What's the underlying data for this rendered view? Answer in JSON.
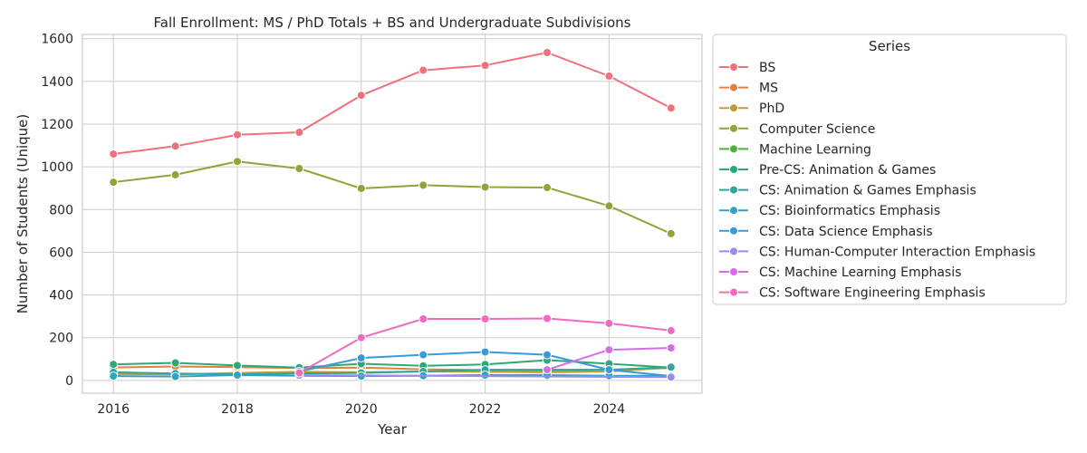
{
  "chart_data": {
    "type": "line",
    "title": "Fall Enrollment: MS / PhD Totals + BS and Undergraduate Subdivisions",
    "xlabel": "Year",
    "ylabel": "Number of Students (Unique)",
    "xlim": [
      2015.5,
      2025.5
    ],
    "ylim": [
      -60,
      1620
    ],
    "xticks": [
      2016,
      2018,
      2020,
      2022,
      2024
    ],
    "yticks": [
      0,
      200,
      400,
      600,
      800,
      1000,
      1200,
      1400,
      1600
    ],
    "grid": true,
    "legend": {
      "title": "Series",
      "placement": "outside-right"
    },
    "x": [
      2016,
      2017,
      2018,
      2019,
      2020,
      2021,
      2022,
      2023,
      2024,
      2025
    ],
    "series": [
      {
        "name": "BS",
        "color": "#f0717c",
        "values": [
          1060,
          1097,
          1150,
          1162,
          1335,
          1452,
          1475,
          1535,
          1425,
          1275
        ]
      },
      {
        "name": "MS",
        "color": "#e1803f",
        "values": [
          60,
          65,
          62,
          58,
          60,
          52,
          48,
          45,
          50,
          58
        ]
      },
      {
        "name": "PhD",
        "color": "#c29b34",
        "values": [
          30,
          28,
          35,
          40,
          38,
          42,
          40,
          38,
          42,
          60
        ]
      },
      {
        "name": "Computer Science",
        "color": "#95a23a",
        "values": [
          928,
          963,
          1025,
          992,
          899,
          914,
          905,
          903,
          817,
          687
        ]
      },
      {
        "name": "Machine Learning",
        "color": "#4caf3e",
        "values": [
          null,
          null,
          null,
          null,
          null,
          null,
          null,
          null,
          null,
          null
        ]
      },
      {
        "name": "Pre-CS: Animation & Games",
        "color": "#2fa877",
        "values": [
          75,
          82,
          70,
          60,
          78,
          68,
          75,
          95,
          78,
          60
        ]
      },
      {
        "name": "CS: Animation & Games Emphasis",
        "color": "#2ea59e",
        "values": [
          38,
          32,
          28,
          32,
          35,
          42,
          50,
          50,
          50,
          62
        ]
      },
      {
        "name": "CS: Bioinformatics Emphasis",
        "color": "#2fa3bf",
        "values": [
          20,
          18,
          25,
          22,
          20,
          22,
          25,
          25,
          22,
          22
        ]
      },
      {
        "name": "CS: Data Science Emphasis",
        "color": "#3a9ad8",
        "values": [
          null,
          null,
          null,
          42,
          105,
          120,
          133,
          120,
          50,
          20
        ]
      },
      {
        "name": "CS: Human-Computer Interaction Emphasis",
        "color": "#9b8af0",
        "values": [
          null,
          null,
          null,
          25,
          null,
          null,
          null,
          null,
          null,
          15
        ]
      },
      {
        "name": "CS: Machine Learning Emphasis",
        "color": "#d66ce8",
        "values": [
          null,
          null,
          null,
          null,
          null,
          null,
          null,
          50,
          143,
          152
        ]
      },
      {
        "name": "CS: Software Engineering Emphasis",
        "color": "#f06ac0",
        "values": [
          null,
          null,
          null,
          35,
          200,
          288,
          288,
          290,
          267,
          233
        ]
      }
    ]
  }
}
